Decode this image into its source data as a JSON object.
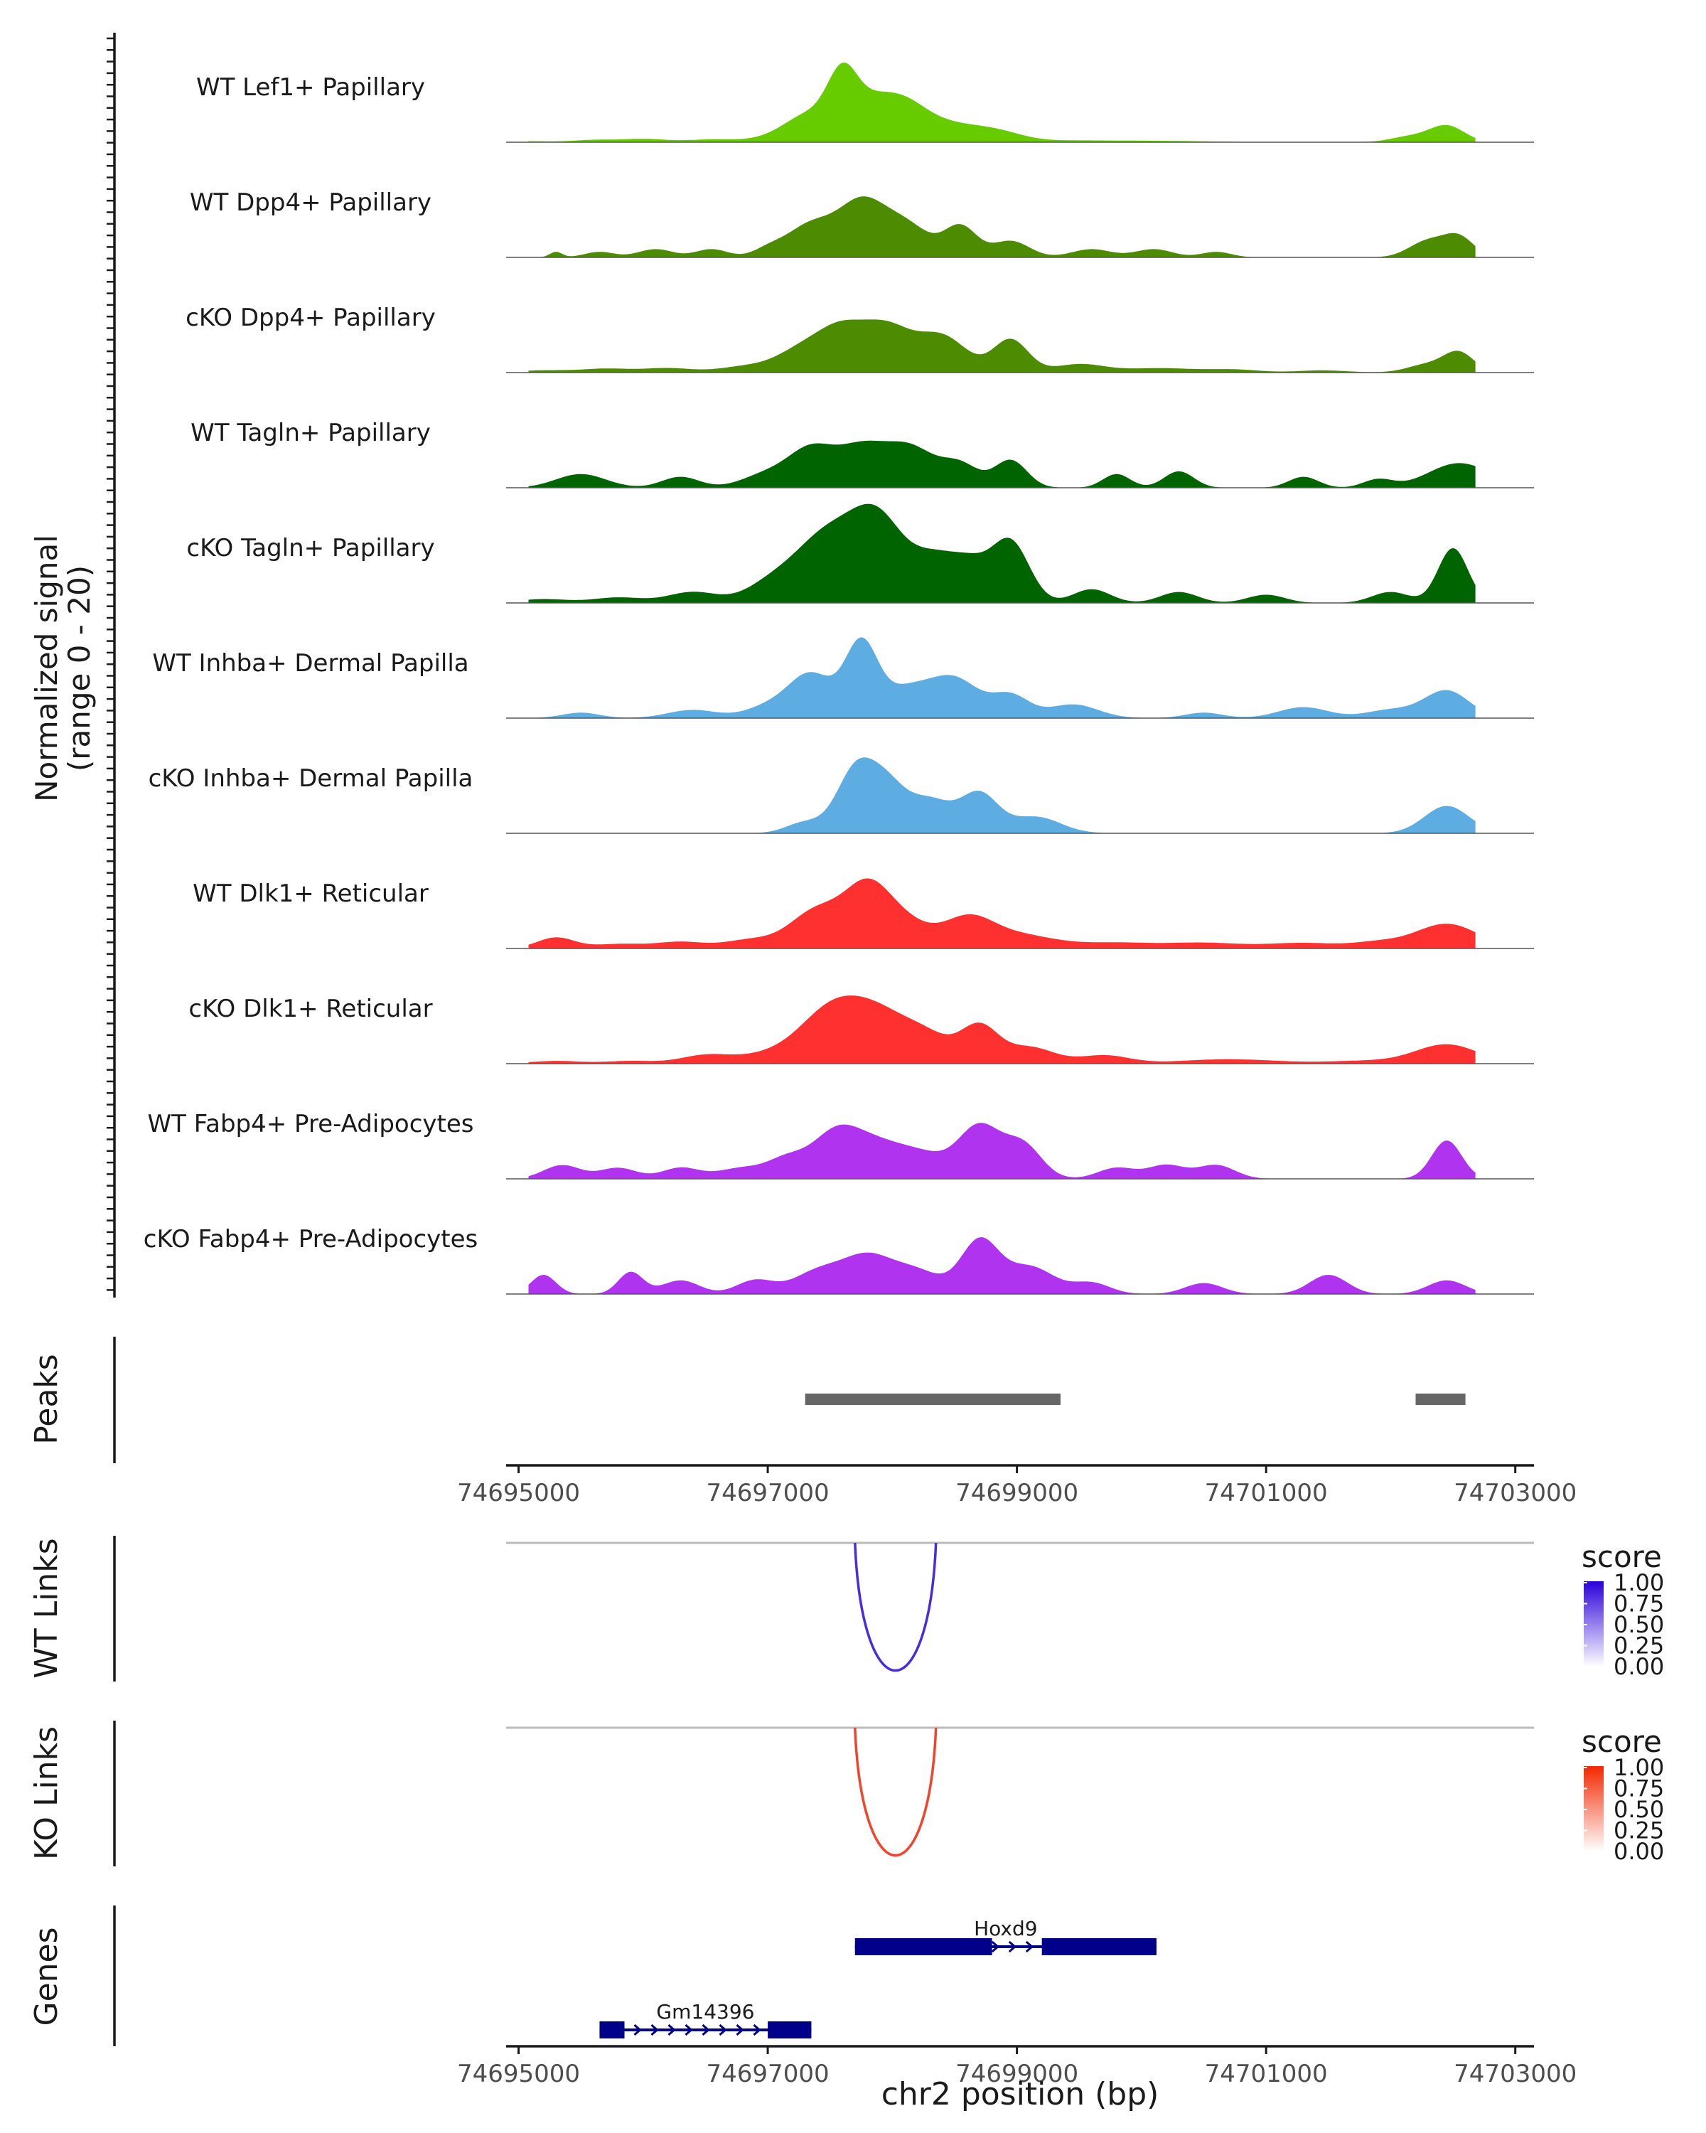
{
  "chart_data": {
    "type": "area",
    "title": "",
    "coverage": {
      "ylabel_line1": "Normalized signal",
      "ylabel_line2": "(range 0 - 20)",
      "ylim": [
        0,
        20
      ],
      "xlim": [
        74694900,
        74703150
      ],
      "series": [
        {
          "name": "WT Lef1+ Papillary",
          "color": "#66CC00",
          "peaks": [
            [
              74695000,
              0.2,
              220
            ],
            [
              74695600,
              0.4,
              160
            ],
            [
              74696000,
              0.6,
              180
            ],
            [
              74696550,
              0.5,
              200
            ],
            [
              74697050,
              0.6,
              200
            ],
            [
              74697350,
              5.0,
              200
            ],
            [
              74697600,
              10.0,
              120
            ],
            [
              74697800,
              4.0,
              150
            ],
            [
              74698050,
              7.0,
              200
            ],
            [
              74698450,
              3.0,
              250
            ],
            [
              74698850,
              1.5,
              200
            ],
            [
              74699400,
              0.3,
              400
            ],
            [
              74700200,
              0.2,
              400
            ],
            [
              74702150,
              1.0,
              150
            ],
            [
              74702450,
              3.0,
              140
            ]
          ]
        },
        {
          "name": "WT Dpp4+ Papillary",
          "color": "#4D8C00",
          "peaks": [
            [
              74695300,
              1.0,
              50
            ],
            [
              74695650,
              1.0,
              120
            ],
            [
              74696100,
              1.5,
              140
            ],
            [
              74696550,
              1.5,
              130
            ],
            [
              74697000,
              1.2,
              120
            ],
            [
              74697350,
              6.0,
              200
            ],
            [
              74697750,
              9.0,
              180
            ],
            [
              74698100,
              6.0,
              200
            ],
            [
              74698550,
              5.5,
              130
            ],
            [
              74698950,
              3.0,
              150
            ],
            [
              74699600,
              1.5,
              160
            ],
            [
              74700100,
              1.5,
              150
            ],
            [
              74700600,
              1.0,
              120
            ],
            [
              74702300,
              3.0,
              150
            ],
            [
              74702550,
              3.5,
              120
            ]
          ]
        },
        {
          "name": "cKO Dpp4+ Papillary",
          "color": "#4D8C00",
          "peaks": [
            [
              74695200,
              0.4,
              200
            ],
            [
              74695700,
              0.7,
              200
            ],
            [
              74696200,
              0.8,
              200
            ],
            [
              74696800,
              1.0,
              200
            ],
            [
              74697300,
              4.5,
              220
            ],
            [
              74697600,
              6.0,
              180
            ],
            [
              74697950,
              8.0,
              200
            ],
            [
              74698400,
              6.5,
              200
            ],
            [
              74698950,
              6.0,
              140
            ],
            [
              74699500,
              1.5,
              200
            ],
            [
              74700150,
              0.8,
              300
            ],
            [
              74700750,
              0.5,
              200
            ],
            [
              74701450,
              0.4,
              200
            ],
            [
              74702300,
              1.5,
              160
            ],
            [
              74702550,
              3.5,
              120
            ]
          ]
        },
        {
          "name": "WT Tagln+ Papillary",
          "color": "#006400",
          "peaks": [
            [
              74695500,
              2.5,
              200
            ],
            [
              74696300,
              2.0,
              150
            ],
            [
              74697000,
              2.5,
              200
            ],
            [
              74697350,
              6.5,
              180
            ],
            [
              74697750,
              7.0,
              200
            ],
            [
              74698150,
              7.0,
              200
            ],
            [
              74698550,
              4.0,
              150
            ],
            [
              74698950,
              5.0,
              130
            ],
            [
              74699800,
              2.5,
              110
            ],
            [
              74700300,
              3.0,
              120
            ],
            [
              74701300,
              2.0,
              120
            ],
            [
              74701900,
              1.5,
              120
            ],
            [
              74702550,
              4.5,
              250
            ]
          ]
        },
        {
          "name": "cKO Tagln+ Papillary",
          "color": "#006400",
          "peaks": [
            [
              74695200,
              0.7,
              200
            ],
            [
              74695800,
              1.0,
              200
            ],
            [
              74696400,
              2.0,
              200
            ],
            [
              74697000,
              2.5,
              200
            ],
            [
              74697500,
              13.0,
              280
            ],
            [
              74697900,
              12.0,
              200
            ],
            [
              74698350,
              8.0,
              200
            ],
            [
              74698650,
              5.0,
              150
            ],
            [
              74698950,
              11.0,
              150
            ],
            [
              74699600,
              2.5,
              150
            ],
            [
              74700300,
              2.0,
              150
            ],
            [
              74701000,
              1.5,
              150
            ],
            [
              74702000,
              2.0,
              150
            ],
            [
              74702500,
              10.0,
              120
            ]
          ]
        },
        {
          "name": "WT Inhba+ Dermal Papilla",
          "color": "#5DADE2",
          "peaks": [
            [
              74695500,
              1.0,
              150
            ],
            [
              74696400,
              1.5,
              200
            ],
            [
              74697000,
              2.0,
              180
            ],
            [
              74697350,
              8.0,
              180
            ],
            [
              74697750,
              13.0,
              130
            ],
            [
              74698100,
              5.0,
              200
            ],
            [
              74698500,
              7.0,
              200
            ],
            [
              74698950,
              4.0,
              150
            ],
            [
              74699450,
              2.5,
              200
            ],
            [
              74700500,
              1.0,
              150
            ],
            [
              74701300,
              2.0,
              200
            ],
            [
              74702000,
              1.5,
              200
            ],
            [
              74702450,
              5.0,
              180
            ]
          ]
        },
        {
          "name": "cKO Inhba+ Dermal Papilla",
          "color": "#5DADE2",
          "peaks": [
            [
              74697300,
              2.0,
              150
            ],
            [
              74697700,
              11.0,
              150
            ],
            [
              74697950,
              8.0,
              150
            ],
            [
              74698300,
              6.0,
              180
            ],
            [
              74698700,
              7.0,
              150
            ],
            [
              74699150,
              3.0,
              200
            ],
            [
              74702450,
              5.0,
              180
            ]
          ]
        },
        {
          "name": "WT Dlk1+ Reticular",
          "color": "#FF3030",
          "peaks": [
            [
              74695300,
              2.0,
              150
            ],
            [
              74695800,
              0.8,
              200
            ],
            [
              74696300,
              1.2,
              200
            ],
            [
              74696850,
              1.5,
              200
            ],
            [
              74697400,
              7.0,
              220
            ],
            [
              74697800,
              10.0,
              180
            ],
            [
              74698100,
              4.5,
              200
            ],
            [
              74698600,
              5.0,
              200
            ],
            [
              74699000,
              2.5,
              300
            ],
            [
              74699800,
              1.0,
              300
            ],
            [
              74700500,
              1.0,
              300
            ],
            [
              74701300,
              1.0,
              300
            ],
            [
              74701900,
              1.0,
              200
            ],
            [
              74702450,
              4.5,
              250
            ]
          ]
        },
        {
          "name": "cKO Dlk1+ Reticular",
          "color": "#FF3030",
          "peaks": [
            [
              74695300,
              0.5,
              200
            ],
            [
              74695900,
              0.5,
              200
            ],
            [
              74696500,
              1.5,
              200
            ],
            [
              74697000,
              1.5,
              250
            ],
            [
              74697500,
              9.0,
              250
            ],
            [
              74697900,
              8.0,
              250
            ],
            [
              74698300,
              4.0,
              200
            ],
            [
              74698700,
              6.5,
              150
            ],
            [
              74699100,
              3.0,
              200
            ],
            [
              74699700,
              1.5,
              200
            ],
            [
              74700700,
              0.8,
              400
            ],
            [
              74701800,
              0.5,
              300
            ],
            [
              74702450,
              3.5,
              250
            ]
          ]
        },
        {
          "name": "WT Fabp4+ Pre-Adipocytes",
          "color": "#B033F0",
          "peaks": [
            [
              74695350,
              2.5,
              150
            ],
            [
              74695800,
              2.0,
              150
            ],
            [
              74696300,
              2.0,
              150
            ],
            [
              74696800,
              2.0,
              200
            ],
            [
              74697150,
              3.0,
              150
            ],
            [
              74697550,
              8.5,
              200
            ],
            [
              74697900,
              5.0,
              200
            ],
            [
              74698250,
              4.0,
              200
            ],
            [
              74698700,
              9.5,
              170
            ],
            [
              74699050,
              6.0,
              150
            ],
            [
              74699800,
              2.0,
              150
            ],
            [
              74700200,
              2.5,
              150
            ],
            [
              74700600,
              2.5,
              150
            ],
            [
              74702450,
              7.0,
              120
            ]
          ]
        },
        {
          "name": "cKO Fabp4+ Pre-Adipocytes",
          "color": "#B033F0",
          "peaks": [
            [
              74695200,
              3.5,
              100
            ],
            [
              74695900,
              4.0,
              100
            ],
            [
              74696300,
              2.5,
              150
            ],
            [
              74696900,
              2.5,
              150
            ],
            [
              74697400,
              4.0,
              200
            ],
            [
              74697800,
              6.5,
              200
            ],
            [
              74698200,
              4.0,
              200
            ],
            [
              74698700,
              9.5,
              150
            ],
            [
              74699100,
              5.0,
              200
            ],
            [
              74699600,
              2.0,
              150
            ],
            [
              74700500,
              2.0,
              150
            ],
            [
              74701500,
              3.5,
              150
            ],
            [
              74702450,
              2.5,
              150
            ]
          ]
        }
      ]
    },
    "peaks": {
      "label": "Peaks",
      "regions": [
        [
          74697300,
          74699350
        ],
        [
          74702200,
          74702600
        ]
      ]
    },
    "x_axis": {
      "ticks": [
        74695000,
        74697000,
        74699000,
        74701000,
        74703000
      ],
      "tick_labels": [
        "74695000",
        "74697000",
        "74699000",
        "74701000",
        "74703000"
      ],
      "xlabel": "chr2 position (bp)"
    },
    "links": [
      {
        "label": "WT Links",
        "start": 74697700,
        "end": 74698350,
        "score": 1.0,
        "color": "#4B2BE0",
        "legend": {
          "title": "score",
          "labels": [
            "1.00",
            "0.75",
            "0.50",
            "0.25",
            "0.00"
          ],
          "colors": [
            "#2B00D9",
            "#FFFFFF"
          ]
        }
      },
      {
        "label": "KO Links",
        "start": 74697700,
        "end": 74698350,
        "score": 1.0,
        "color": "#F1442A",
        "legend": {
          "title": "score",
          "labels": [
            "1.00",
            "0.75",
            "0.50",
            "0.25",
            "0.00"
          ],
          "colors": [
            "#F22800",
            "#FFFFFF"
          ]
        }
      }
    ],
    "genes": {
      "label": "Genes",
      "items": [
        {
          "name": "Hoxd9",
          "start": 74697700,
          "end": 74700120,
          "exons": [
            [
              74697700,
              74698800
            ],
            [
              74699200,
              74700120
            ]
          ],
          "strand": "+",
          "color": "#00008B"
        },
        {
          "name": "Gm14396",
          "start": 74695650,
          "end": 74697350,
          "exons": [
            [
              74695650,
              74695850
            ],
            [
              74697000,
              74697350
            ]
          ],
          "strand": "+",
          "color": "#00008B"
        }
      ]
    }
  }
}
